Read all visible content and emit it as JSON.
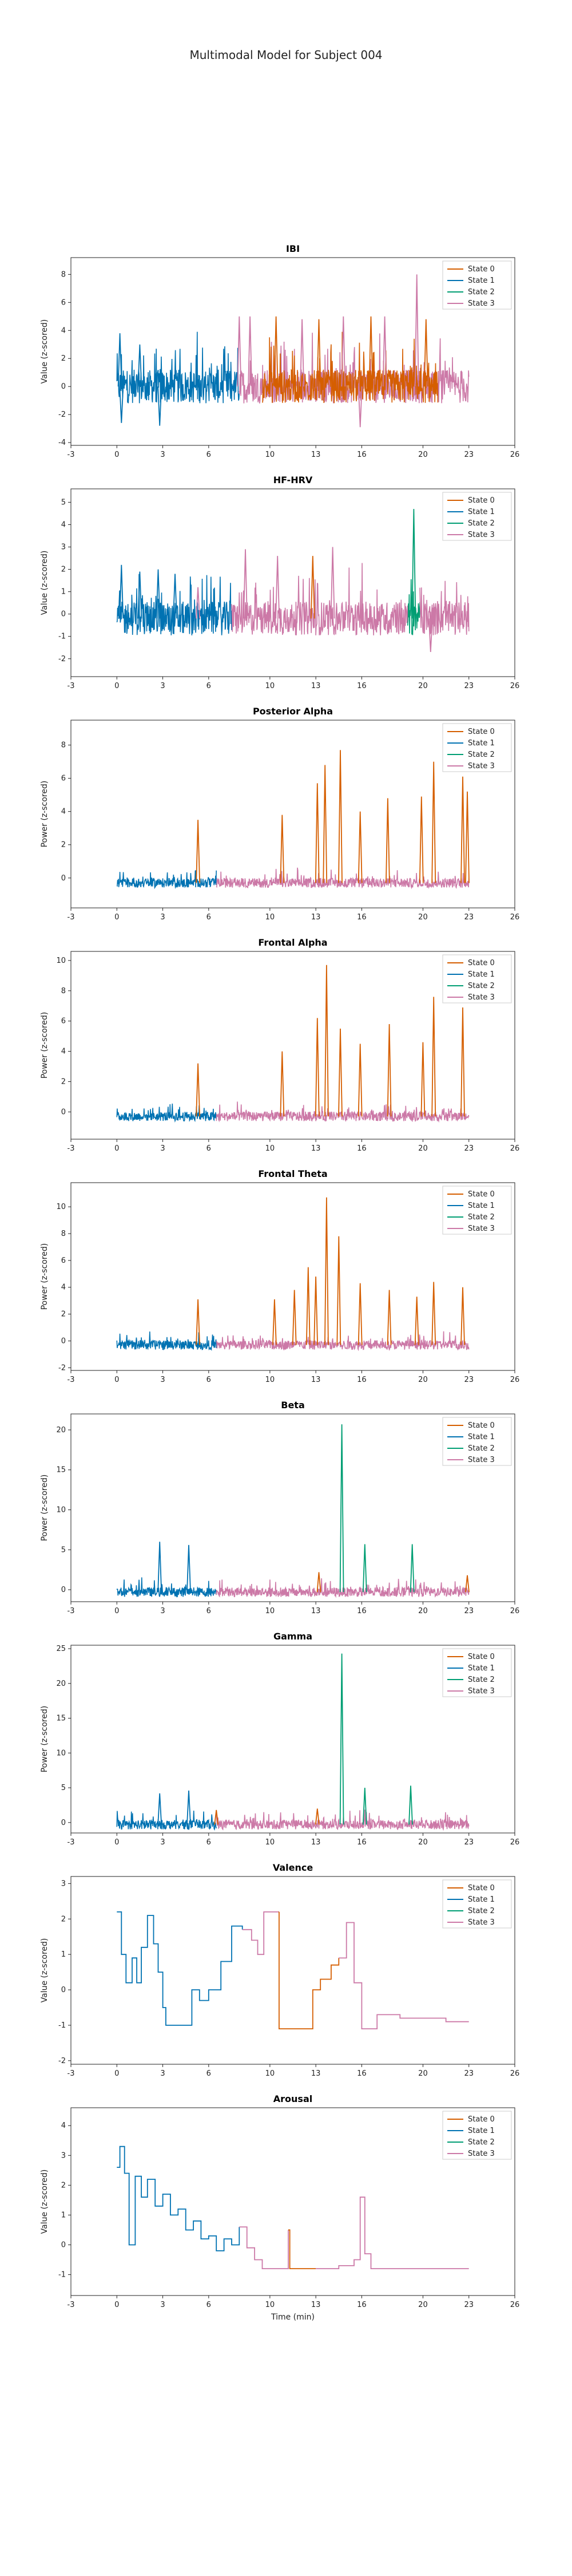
{
  "figure": {
    "title": "Multimodal Model for Subject 004",
    "xlabel": "Time (min)"
  },
  "legend": {
    "entries": [
      "State 0",
      "State 1",
      "State 2",
      "State 3"
    ],
    "placement": "top-right"
  },
  "colors": {
    "State 0": "#d55e00",
    "State 1": "#0072b2",
    "State 2": "#009e73",
    "State 3": "#cc79a7",
    "axis": "#222222"
  },
  "chart_data": [
    {
      "type": "line",
      "title": "IBI",
      "ylabel": "Value (z-scored)",
      "xlim": [
        -3,
        26
      ],
      "ylim": [
        -4.2,
        9.2
      ],
      "xticks": [
        -3,
        0,
        3,
        6,
        10,
        13,
        16,
        20,
        23,
        26
      ],
      "yticks": [
        -4,
        -2,
        0,
        2,
        4,
        6,
        8
      ],
      "x_start": 0,
      "x_end": 23,
      "baseline": 0,
      "segments": [
        {
          "state": "State 1",
          "x": [
            0,
            8
          ]
        },
        {
          "state": "State 3",
          "x": [
            8,
            20.8
          ]
        },
        {
          "state": "State 0",
          "x": [
            9.5,
            21
          ]
        },
        {
          "state": "State 3",
          "x": [
            21,
            23
          ]
        }
      ],
      "spikes": [
        {
          "x": 0.2,
          "y": 3.8,
          "state": "State 1"
        },
        {
          "x": 0.3,
          "y": -2.6,
          "state": "State 1"
        },
        {
          "x": 1.5,
          "y": 3.0,
          "state": "State 1"
        },
        {
          "x": 2.8,
          "y": -2.8,
          "state": "State 1"
        },
        {
          "x": 8.0,
          "y": 5.0,
          "state": "State 3"
        },
        {
          "x": 8.7,
          "y": 5.0,
          "state": "State 3"
        },
        {
          "x": 10.4,
          "y": 5.0,
          "state": "State 0"
        },
        {
          "x": 12.1,
          "y": 4.8,
          "state": "State 3"
        },
        {
          "x": 13.2,
          "y": 4.8,
          "state": "State 0"
        },
        {
          "x": 14.8,
          "y": 5.0,
          "state": "State 3"
        },
        {
          "x": 15.9,
          "y": -2.9,
          "state": "State 3"
        },
        {
          "x": 16.6,
          "y": 5.0,
          "state": "State 0"
        },
        {
          "x": 17.5,
          "y": 5.0,
          "state": "State 3"
        },
        {
          "x": 19.6,
          "y": 8.0,
          "state": "State 3"
        },
        {
          "x": 20.2,
          "y": 4.8,
          "state": "State 0"
        }
      ]
    },
    {
      "type": "line",
      "title": "HF-HRV",
      "ylabel": "Value (z-scored)",
      "xlim": [
        -3,
        26
      ],
      "ylim": [
        -2.8,
        5.6
      ],
      "xticks": [
        -3,
        0,
        3,
        6,
        10,
        13,
        16,
        20,
        23,
        26
      ],
      "yticks": [
        -2,
        -1,
        0,
        1,
        2,
        3,
        4,
        5
      ],
      "x_start": 0,
      "x_end": 23,
      "baseline": -0.2,
      "segments": [
        {
          "state": "State 1",
          "x": [
            0,
            7.5
          ]
        },
        {
          "state": "State 3",
          "x": [
            7.5,
            19
          ]
        },
        {
          "state": "State 2",
          "x": [
            19,
            19.8
          ]
        },
        {
          "state": "State 3",
          "x": [
            19.8,
            23
          ]
        }
      ],
      "spikes": [
        {
          "x": 0.3,
          "y": 2.2,
          "state": "State 1"
        },
        {
          "x": 1.5,
          "y": 1.9,
          "state": "State 1"
        },
        {
          "x": 2.7,
          "y": 2.0,
          "state": "State 1"
        },
        {
          "x": 3.8,
          "y": 1.8,
          "state": "State 1"
        },
        {
          "x": 5.3,
          "y": 1.2,
          "state": "State 3"
        },
        {
          "x": 8.4,
          "y": 2.9,
          "state": "State 3"
        },
        {
          "x": 10.5,
          "y": 2.6,
          "state": "State 3"
        },
        {
          "x": 12.8,
          "y": 2.6,
          "state": "State 0"
        },
        {
          "x": 14.1,
          "y": 3.0,
          "state": "State 3"
        },
        {
          "x": 19.4,
          "y": 4.7,
          "state": "State 2"
        },
        {
          "x": 20.5,
          "y": -1.7,
          "state": "State 3"
        }
      ]
    },
    {
      "type": "line",
      "title": "Posterior Alpha",
      "ylabel": "Power (z-scored)",
      "xlim": [
        -3,
        26
      ],
      "ylim": [
        -1.8,
        9.5
      ],
      "xticks": [
        -3,
        0,
        3,
        6,
        10,
        13,
        16,
        20,
        23,
        26
      ],
      "yticks": [
        0,
        2,
        4,
        6,
        8
      ],
      "x_start": 0,
      "x_end": 23,
      "baseline": -0.3,
      "segments": [
        {
          "state": "State 1",
          "x": [
            0,
            6.5
          ]
        },
        {
          "state": "State 3",
          "x": [
            6.5,
            23
          ]
        }
      ],
      "spikes": [
        {
          "x": 5.3,
          "y": 3.5,
          "state": "State 0"
        },
        {
          "x": 10.8,
          "y": 3.8,
          "state": "State 0"
        },
        {
          "x": 13.1,
          "y": 5.7,
          "state": "State 0"
        },
        {
          "x": 13.6,
          "y": 6.8,
          "state": "State 0"
        },
        {
          "x": 14.6,
          "y": 7.7,
          "state": "State 0"
        },
        {
          "x": 15.9,
          "y": 4.0,
          "state": "State 0"
        },
        {
          "x": 17.7,
          "y": 4.8,
          "state": "State 0"
        },
        {
          "x": 19.9,
          "y": 4.9,
          "state": "State 0"
        },
        {
          "x": 20.7,
          "y": 7.0,
          "state": "State 0"
        },
        {
          "x": 22.6,
          "y": 6.1,
          "state": "State 0"
        },
        {
          "x": 22.9,
          "y": 5.2,
          "state": "State 0"
        }
      ]
    },
    {
      "type": "line",
      "title": "Frontal Alpha",
      "ylabel": "Power (z-scored)",
      "xlim": [
        -3,
        26
      ],
      "ylim": [
        -1.8,
        10.6
      ],
      "xticks": [
        -3,
        0,
        3,
        6,
        10,
        13,
        16,
        20,
        23,
        26
      ],
      "yticks": [
        0,
        2,
        4,
        6,
        8,
        10
      ],
      "x_start": 0,
      "x_end": 23,
      "baseline": -0.3,
      "segments": [
        {
          "state": "State 1",
          "x": [
            0,
            6.5
          ]
        },
        {
          "state": "State 3",
          "x": [
            6.5,
            23
          ]
        }
      ],
      "spikes": [
        {
          "x": 5.3,
          "y": 3.2,
          "state": "State 0"
        },
        {
          "x": 10.8,
          "y": 4.0,
          "state": "State 0"
        },
        {
          "x": 13.1,
          "y": 6.2,
          "state": "State 0"
        },
        {
          "x": 13.7,
          "y": 9.7,
          "state": "State 0"
        },
        {
          "x": 14.6,
          "y": 5.5,
          "state": "State 0"
        },
        {
          "x": 15.9,
          "y": 4.5,
          "state": "State 0"
        },
        {
          "x": 17.8,
          "y": 5.8,
          "state": "State 0"
        },
        {
          "x": 20.0,
          "y": 4.6,
          "state": "State 0"
        },
        {
          "x": 20.7,
          "y": 7.6,
          "state": "State 0"
        },
        {
          "x": 22.6,
          "y": 6.9,
          "state": "State 0"
        }
      ]
    },
    {
      "type": "line",
      "title": "Frontal Theta",
      "ylabel": "Power (z-scored)",
      "xlim": [
        -3,
        26
      ],
      "ylim": [
        -2.2,
        11.8
      ],
      "xticks": [
        -3,
        0,
        3,
        6,
        10,
        13,
        16,
        20,
        23,
        26
      ],
      "yticks": [
        -2,
        0,
        2,
        4,
        6,
        8,
        10
      ],
      "x_start": 0,
      "x_end": 23,
      "baseline": -0.3,
      "segments": [
        {
          "state": "State 1",
          "x": [
            0,
            6.5
          ]
        },
        {
          "state": "State 3",
          "x": [
            6.5,
            23
          ]
        }
      ],
      "spikes": [
        {
          "x": 5.3,
          "y": 3.1,
          "state": "State 0"
        },
        {
          "x": 10.3,
          "y": 3.1,
          "state": "State 0"
        },
        {
          "x": 11.6,
          "y": 3.8,
          "state": "State 0"
        },
        {
          "x": 12.5,
          "y": 5.5,
          "state": "State 0"
        },
        {
          "x": 13.0,
          "y": 4.8,
          "state": "State 0"
        },
        {
          "x": 13.7,
          "y": 10.7,
          "state": "State 0"
        },
        {
          "x": 14.5,
          "y": 7.8,
          "state": "State 0"
        },
        {
          "x": 15.9,
          "y": 4.3,
          "state": "State 0"
        },
        {
          "x": 17.8,
          "y": 3.8,
          "state": "State 0"
        },
        {
          "x": 19.6,
          "y": 3.3,
          "state": "State 0"
        },
        {
          "x": 20.7,
          "y": 4.4,
          "state": "State 0"
        },
        {
          "x": 22.6,
          "y": 4.0,
          "state": "State 0"
        }
      ]
    },
    {
      "type": "line",
      "title": "Beta",
      "ylabel": "Power (z-scored)",
      "xlim": [
        -3,
        26
      ],
      "ylim": [
        -1.5,
        22.0
      ],
      "xticks": [
        -3,
        0,
        3,
        6,
        10,
        13,
        16,
        20,
        23,
        26
      ],
      "yticks": [
        0,
        5,
        10,
        15,
        20
      ],
      "x_start": 0,
      "x_end": 23,
      "baseline": -0.3,
      "segments": [
        {
          "state": "State 1",
          "x": [
            0,
            6.5
          ]
        },
        {
          "state": "State 3",
          "x": [
            6.5,
            23
          ]
        }
      ],
      "spikes": [
        {
          "x": 2.8,
          "y": 6.0,
          "state": "State 1"
        },
        {
          "x": 4.7,
          "y": 5.6,
          "state": "State 1"
        },
        {
          "x": 14.7,
          "y": 20.7,
          "state": "State 2"
        },
        {
          "x": 16.2,
          "y": 5.7,
          "state": "State 2"
        },
        {
          "x": 19.3,
          "y": 5.7,
          "state": "State 2"
        },
        {
          "x": 13.2,
          "y": 2.2,
          "state": "State 0"
        },
        {
          "x": 22.9,
          "y": 1.8,
          "state": "State 0"
        }
      ]
    },
    {
      "type": "line",
      "title": "Gamma",
      "ylabel": "Power (z-scored)",
      "xlim": [
        -3,
        26
      ],
      "ylim": [
        -1.5,
        25.5
      ],
      "xticks": [
        -3,
        0,
        3,
        6,
        10,
        13,
        16,
        20,
        23,
        26
      ],
      "yticks": [
        0,
        5,
        10,
        15,
        20,
        25
      ],
      "x_start": 0,
      "x_end": 23,
      "baseline": -0.3,
      "segments": [
        {
          "state": "State 1",
          "x": [
            0,
            6.5
          ]
        },
        {
          "state": "State 3",
          "x": [
            6.5,
            23
          ]
        }
      ],
      "spikes": [
        {
          "x": 2.8,
          "y": 4.2,
          "state": "State 1"
        },
        {
          "x": 4.7,
          "y": 4.6,
          "state": "State 1"
        },
        {
          "x": 14.7,
          "y": 24.3,
          "state": "State 2"
        },
        {
          "x": 16.2,
          "y": 5.0,
          "state": "State 2"
        },
        {
          "x": 19.2,
          "y": 5.3,
          "state": "State 2"
        },
        {
          "x": 6.5,
          "y": 1.8,
          "state": "State 0"
        },
        {
          "x": 13.1,
          "y": 2.0,
          "state": "State 0"
        }
      ]
    },
    {
      "type": "line",
      "title": "Valence",
      "ylabel": "Value (z-scored)",
      "xlim": [
        -3,
        26
      ],
      "ylim": [
        -2.1,
        3.2
      ],
      "xticks": [
        -3,
        0,
        3,
        6,
        10,
        13,
        16,
        20,
        23,
        26
      ],
      "yticks": [
        -2,
        -1,
        0,
        1,
        2,
        3
      ],
      "x_start": 0,
      "x_end": 23,
      "baseline": null,
      "steps": [
        {
          "state": "State 1",
          "points": [
            [
              0,
              2.2
            ],
            [
              0.3,
              1.0
            ],
            [
              0.6,
              0.2
            ],
            [
              1.0,
              0.9
            ],
            [
              1.3,
              0.2
            ],
            [
              1.6,
              1.2
            ],
            [
              2.0,
              2.1
            ],
            [
              2.4,
              1.3
            ],
            [
              2.7,
              0.5
            ],
            [
              3.0,
              -0.5
            ],
            [
              3.2,
              -1.0
            ],
            [
              4.6,
              -1.0
            ],
            [
              4.9,
              0.0
            ],
            [
              5.4,
              -0.3
            ],
            [
              6.0,
              0.0
            ],
            [
              6.8,
              0.8
            ],
            [
              7.5,
              1.8
            ],
            [
              8.2,
              1.7
            ]
          ]
        },
        {
          "state": "State 3",
          "points": [
            [
              8.2,
              1.7
            ],
            [
              8.8,
              1.4
            ],
            [
              9.2,
              1.0
            ],
            [
              9.6,
              2.2
            ],
            [
              10.3,
              2.2
            ],
            [
              10.6,
              2.2
            ]
          ]
        },
        {
          "state": "State 0",
          "points": [
            [
              10.6,
              2.2
            ],
            [
              10.6,
              -1.1
            ],
            [
              12.4,
              -1.1
            ],
            [
              12.8,
              0.0
            ],
            [
              13.3,
              0.3
            ],
            [
              14.0,
              0.7
            ],
            [
              14.5,
              0.9
            ]
          ]
        },
        {
          "state": "State 3",
          "points": [
            [
              14.5,
              0.9
            ],
            [
              15.0,
              1.9
            ],
            [
              15.5,
              0.2
            ],
            [
              16.0,
              -1.1
            ],
            [
              17.0,
              -0.7
            ],
            [
              18.5,
              -0.8
            ],
            [
              20.0,
              -0.8
            ],
            [
              21.5,
              -0.9
            ],
            [
              23.0,
              -0.9
            ]
          ]
        }
      ]
    },
    {
      "type": "line",
      "title": "Arousal",
      "ylabel": "Value (z-scored)",
      "xlabel": "Time (min)",
      "xlim": [
        -3,
        26
      ],
      "ylim": [
        -1.7,
        4.6
      ],
      "xticks": [
        -3,
        0,
        3,
        6,
        10,
        13,
        16,
        20,
        23,
        26
      ],
      "yticks": [
        -1,
        0,
        1,
        2,
        3,
        4
      ],
      "x_start": 0,
      "x_end": 23,
      "baseline": null,
      "steps": [
        {
          "state": "State 1",
          "points": [
            [
              0,
              2.6
            ],
            [
              0.2,
              3.3
            ],
            [
              0.5,
              2.4
            ],
            [
              0.8,
              0.0
            ],
            [
              1.2,
              2.3
            ],
            [
              1.6,
              1.6
            ],
            [
              2.0,
              2.2
            ],
            [
              2.5,
              1.3
            ],
            [
              3.0,
              1.7
            ],
            [
              3.5,
              1.0
            ],
            [
              4.0,
              1.2
            ],
            [
              4.5,
              0.5
            ],
            [
              5.0,
              0.8
            ],
            [
              5.5,
              0.2
            ],
            [
              6.0,
              0.3
            ],
            [
              6.5,
              -0.2
            ],
            [
              7.0,
              0.2
            ],
            [
              7.5,
              0.0
            ],
            [
              8.0,
              0.6
            ]
          ]
        },
        {
          "state": "State 3",
          "points": [
            [
              8.0,
              0.6
            ],
            [
              8.5,
              -0.1
            ],
            [
              9.0,
              -0.5
            ],
            [
              9.5,
              -0.8
            ],
            [
              11.0,
              -0.8
            ],
            [
              11.2,
              0.5
            ]
          ]
        },
        {
          "state": "State 0",
          "points": [
            [
              11.2,
              0.5
            ],
            [
              11.3,
              -0.8
            ],
            [
              12.5,
              -0.8
            ],
            [
              13.0,
              -0.8
            ]
          ]
        },
        {
          "state": "State 3",
          "points": [
            [
              13.0,
              -0.8
            ],
            [
              14.5,
              -0.7
            ],
            [
              15.5,
              -0.5
            ],
            [
              15.9,
              1.6
            ],
            [
              16.2,
              -0.3
            ],
            [
              16.6,
              -0.8
            ],
            [
              18.0,
              -0.8
            ],
            [
              20.0,
              -0.8
            ],
            [
              23.0,
              -0.8
            ]
          ]
        }
      ]
    }
  ]
}
